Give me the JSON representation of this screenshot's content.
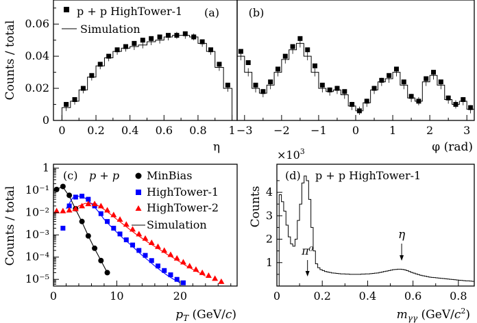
{
  "chart_data": [
    {
      "panel": "(a)",
      "type": "scatter",
      "xlabel": "η",
      "ylabel": "Counts / total",
      "xlim": [
        -0.05,
        1.03
      ],
      "ylim": [
        0,
        0.075
      ],
      "xticks": [
        "0",
        "0.2",
        "0.4",
        "0.6",
        "0.8",
        "1"
      ],
      "yticks": [
        "0",
        "0.02",
        "0.04",
        "0.06"
      ],
      "legend": {
        "data_label": "p + p HighTower-1",
        "sim_label": "Simulation",
        "placement": "top-left"
      },
      "data": {
        "x": [
          0.025,
          0.075,
          0.125,
          0.175,
          0.225,
          0.275,
          0.325,
          0.375,
          0.425,
          0.475,
          0.525,
          0.575,
          0.625,
          0.675,
          0.725,
          0.775,
          0.825,
          0.875,
          0.925,
          0.975
        ],
        "y": [
          0.01,
          0.013,
          0.02,
          0.028,
          0.035,
          0.04,
          0.044,
          0.046,
          0.048,
          0.05,
          0.051,
          0.052,
          0.053,
          0.053,
          0.054,
          0.052,
          0.049,
          0.044,
          0.035,
          0.022
        ]
      },
      "simulation": {
        "x": [
          0.025,
          0.075,
          0.125,
          0.175,
          0.225,
          0.275,
          0.325,
          0.375,
          0.425,
          0.475,
          0.525,
          0.575,
          0.625,
          0.675,
          0.725,
          0.775,
          0.825,
          0.875,
          0.925,
          0.975
        ],
        "y": [
          0.008,
          0.012,
          0.019,
          0.027,
          0.034,
          0.039,
          0.043,
          0.045,
          0.046,
          0.047,
          0.049,
          0.05,
          0.052,
          0.053,
          0.053,
          0.052,
          0.048,
          0.043,
          0.033,
          0.02
        ]
      }
    },
    {
      "panel": "(b)",
      "type": "scatter",
      "xlabel": "φ (rad)",
      "xlim": [
        -3.2,
        3.2
      ],
      "ylim": [
        0,
        0.075
      ],
      "xticks": [
        "−3",
        "−2",
        "−1",
        "0",
        "1",
        "2",
        "3"
      ],
      "data": {
        "x": [
          -3.1,
          -2.9,
          -2.7,
          -2.5,
          -2.3,
          -2.1,
          -1.9,
          -1.7,
          -1.5,
          -1.3,
          -1.1,
          -0.9,
          -0.7,
          -0.5,
          -0.3,
          -0.1,
          0.1,
          0.3,
          0.5,
          0.7,
          0.9,
          1.1,
          1.3,
          1.5,
          1.7,
          1.9,
          2.1,
          2.3,
          2.5,
          2.7,
          2.9,
          3.1
        ],
        "y": [
          0.043,
          0.036,
          0.022,
          0.018,
          0.024,
          0.032,
          0.04,
          0.046,
          0.051,
          0.044,
          0.034,
          0.022,
          0.019,
          0.02,
          0.018,
          0.01,
          0.006,
          0.012,
          0.02,
          0.025,
          0.028,
          0.032,
          0.024,
          0.015,
          0.012,
          0.026,
          0.03,
          0.024,
          0.014,
          0.01,
          0.013,
          0.008
        ]
      },
      "simulation": {
        "x": [
          -3.1,
          -2.9,
          -2.7,
          -2.5,
          -2.3,
          -2.1,
          -1.9,
          -1.7,
          -1.5,
          -1.3,
          -1.1,
          -0.9,
          -0.7,
          -0.5,
          -0.3,
          -0.1,
          0.1,
          0.3,
          0.5,
          0.7,
          0.9,
          1.1,
          1.3,
          1.5,
          1.7,
          1.9,
          2.1,
          2.3,
          2.5,
          2.7,
          2.9,
          3.1
        ],
        "y": [
          0.04,
          0.03,
          0.02,
          0.017,
          0.022,
          0.03,
          0.038,
          0.044,
          0.048,
          0.04,
          0.03,
          0.02,
          0.018,
          0.019,
          0.016,
          0.009,
          0.006,
          0.011,
          0.019,
          0.024,
          0.026,
          0.03,
          0.022,
          0.014,
          0.012,
          0.024,
          0.028,
          0.022,
          0.013,
          0.01,
          0.012,
          0.007
        ]
      }
    },
    {
      "panel": "(c)",
      "type": "scatter",
      "xlabel": "p_T (GeV/c)",
      "ylabel": "Counts / total",
      "yscale": "log",
      "xlim": [
        0,
        29
      ],
      "ylim": [
        5e-06,
        1.5
      ],
      "xticks": [
        "0",
        "10",
        "20"
      ],
      "yticks": [
        "1",
        "10⁻¹",
        "10⁻²",
        "10⁻³",
        "10⁻⁴",
        "10⁻⁵"
      ],
      "legend": {
        "system": "p + p",
        "entries": [
          "MinBias",
          "HighTower-1",
          "HighTower-2",
          "Simulation"
        ],
        "placement": "top-right"
      },
      "series": [
        {
          "name": "MinBias",
          "color": "#000000",
          "marker": "circle",
          "x": [
            0.5,
            1.5,
            2.5,
            3.5,
            4.5,
            5.5,
            6.5,
            7.5,
            8.5
          ],
          "y": [
            0.11,
            0.15,
            0.06,
            0.015,
            0.004,
            0.0009,
            0.00025,
            7e-05,
            2e-05
          ]
        },
        {
          "name": "HighTower-1",
          "color": "#0000ff",
          "marker": "square",
          "x": [
            1.5,
            2.5,
            3.5,
            4.5,
            5.5,
            6.5,
            7.5,
            8.5,
            9.5,
            10.5,
            11.5,
            12.5,
            13.5,
            14.5,
            15.5,
            16.5,
            17.5,
            18.5,
            19.5,
            20.5
          ],
          "y": [
            0.002,
            0.02,
            0.05,
            0.055,
            0.04,
            0.02,
            0.009,
            0.004,
            0.002,
            0.0011,
            0.0006,
            0.00035,
            0.0002,
            0.00012,
            7e-05,
            4e-05,
            2.5e-05,
            1.6e-05,
            1e-05,
            7e-06
          ]
        },
        {
          "name": "HighTower-2",
          "color": "#ff0000",
          "marker": "triangle",
          "x": [
            0.5,
            1.5,
            2.5,
            3.5,
            4.5,
            5.5,
            6.5,
            7.5,
            8.5,
            9.5,
            10.5,
            11.5,
            12.5,
            13.5,
            14.5,
            15.5,
            16.5,
            17.5,
            18.5,
            19.5,
            20.5,
            21.5,
            22.5,
            23.5,
            24.5,
            25.5,
            26.5
          ],
          "y": [
            0.012,
            0.012,
            0.013,
            0.015,
            0.02,
            0.025,
            0.025,
            0.02,
            0.013,
            0.008,
            0.005,
            0.003,
            0.0018,
            0.0011,
            0.0007,
            0.00045,
            0.0003,
            0.0002,
            0.00013,
            9e-05,
            6e-05,
            4e-05,
            2.8e-05,
            2e-05,
            1.5e-05,
            1.1e-05,
            8e-06
          ]
        }
      ],
      "simulation": [
        {
          "x": [
            0.5,
            1.5,
            2.5,
            3.5,
            4.5,
            5.5,
            6.5,
            7.5,
            8.5
          ],
          "y": [
            0.12,
            0.14,
            0.055,
            0.014,
            0.0038,
            0.0009,
            0.00024,
            7e-05,
            2e-05
          ]
        },
        {
          "x": [
            2,
            3,
            4,
            5,
            6,
            7,
            8,
            9,
            10,
            11,
            12,
            13,
            14,
            15,
            16,
            17,
            18,
            19,
            20
          ],
          "y": [
            0.015,
            0.045,
            0.055,
            0.045,
            0.025,
            0.012,
            0.005,
            0.0025,
            0.0013,
            0.0007,
            0.0004,
            0.00022,
            0.00012,
            7e-05,
            4e-05,
            2.4e-05,
            1.5e-05,
            1e-05,
            7e-06
          ]
        },
        {
          "x": [
            3,
            4,
            5,
            6,
            7,
            8,
            9,
            10,
            11,
            12,
            13,
            14,
            15,
            16,
            17,
            18,
            19,
            20,
            21,
            22,
            23,
            24
          ],
          "y": [
            0.012,
            0.02,
            0.026,
            0.026,
            0.021,
            0.014,
            0.0085,
            0.005,
            0.003,
            0.0018,
            0.0011,
            0.0007,
            0.00045,
            0.0003,
            0.0002,
            0.00013,
            9e-05,
            6e-05,
            4e-05,
            2.8e-05,
            2e-05,
            1.4e-05
          ]
        }
      ]
    },
    {
      "panel": "(d)",
      "type": "line",
      "title": "p + p HighTower-1",
      "xlabel": "m_γγ (GeV/c²)",
      "ylabel": "Counts",
      "yexponent": "×10³",
      "xlim": [
        0,
        0.87
      ],
      "ylim": [
        0,
        5.2
      ],
      "xticks": [
        "0",
        "0.2",
        "0.4",
        "0.6",
        "0.8"
      ],
      "yticks": [
        "1",
        "2",
        "3",
        "4"
      ],
      "annotations": [
        {
          "text": "π⁰",
          "x": 0.135
        },
        {
          "text": "η",
          "x": 0.55
        }
      ],
      "histogram": {
        "x": [
          0.005,
          0.015,
          0.025,
          0.035,
          0.045,
          0.055,
          0.065,
          0.075,
          0.085,
          0.095,
          0.105,
          0.115,
          0.125,
          0.135,
          0.145,
          0.155,
          0.165,
          0.175,
          0.185,
          0.195,
          0.205,
          0.215,
          0.225,
          0.235,
          0.245,
          0.255,
          0.265,
          0.275,
          0.285,
          0.295,
          0.305,
          0.315,
          0.325,
          0.335,
          0.345,
          0.355,
          0.365,
          0.375,
          0.385,
          0.395,
          0.405,
          0.415,
          0.425,
          0.435,
          0.445,
          0.455,
          0.465,
          0.475,
          0.485,
          0.495,
          0.505,
          0.515,
          0.525,
          0.535,
          0.545,
          0.555,
          0.565,
          0.575,
          0.585,
          0.595,
          0.605,
          0.615,
          0.625,
          0.635,
          0.645,
          0.655,
          0.665,
          0.675,
          0.685,
          0.695,
          0.705,
          0.715,
          0.725,
          0.735,
          0.745,
          0.755,
          0.765,
          0.775,
          0.785,
          0.795,
          0.805,
          0.815,
          0.825,
          0.835,
          0.845,
          0.855,
          0.865
        ],
        "y": [
          0.0,
          3.9,
          3.6,
          3.2,
          2.6,
          2.1,
          1.8,
          1.7,
          2.0,
          2.8,
          3.5,
          4.4,
          4.7,
          4.5,
          3.7,
          2.5,
          1.5,
          0.95,
          0.78,
          0.7,
          0.66,
          0.62,
          0.6,
          0.58,
          0.56,
          0.55,
          0.54,
          0.53,
          0.52,
          0.52,
          0.51,
          0.51,
          0.5,
          0.5,
          0.5,
          0.5,
          0.5,
          0.51,
          0.51,
          0.52,
          0.52,
          0.53,
          0.54,
          0.55,
          0.56,
          0.58,
          0.6,
          0.62,
          0.64,
          0.66,
          0.68,
          0.7,
          0.71,
          0.72,
          0.72,
          0.71,
          0.69,
          0.66,
          0.62,
          0.58,
          0.55,
          0.52,
          0.49,
          0.46,
          0.44,
          0.42,
          0.4,
          0.38,
          0.37,
          0.36,
          0.35,
          0.34,
          0.33,
          0.32,
          0.31,
          0.3,
          0.29,
          0.28,
          0.27,
          0.26,
          0.25,
          0.24,
          0.23,
          0.22,
          0.22,
          0.21,
          0.2
        ]
      }
    }
  ]
}
